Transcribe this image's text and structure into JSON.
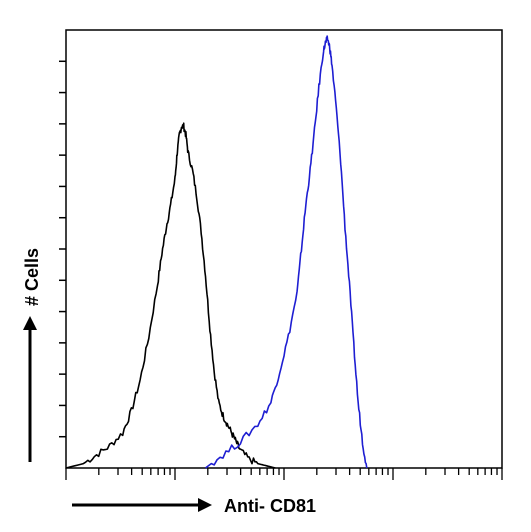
{
  "chart_data": {
    "type": "line",
    "title": "",
    "xlabel": "Anti- CD81",
    "ylabel": "# Cells",
    "x_scale": "log",
    "xlim": [
      0,
      100
    ],
    "ylim": [
      0,
      100
    ],
    "grid": false,
    "legend": "none",
    "series": [
      {
        "color": "#000000",
        "x": [
          0,
          4,
          7,
          10,
          13,
          15,
          17,
          19,
          21,
          22,
          23,
          24,
          25,
          25.5,
          26,
          26.5,
          27,
          27.5,
          28,
          29,
          30,
          31,
          32,
          33,
          34,
          35,
          36,
          37,
          38,
          39,
          40,
          42,
          44,
          46,
          48
        ],
        "y": [
          0,
          1,
          3,
          5,
          8,
          13,
          20,
          30,
          42,
          49,
          55,
          60,
          66,
          72,
          76,
          78,
          78,
          76,
          72,
          68,
          62,
          54,
          44,
          32,
          22,
          15,
          12,
          10,
          8,
          6,
          4,
          2,
          1,
          0.5,
          0
        ]
      },
      {
        "color": "#1e1ed2",
        "x": [
          32,
          36,
          40,
          44,
          47,
          49,
          51,
          53,
          54,
          55,
          56,
          57,
          58,
          59,
          59.5,
          60,
          60.5,
          61,
          62,
          63,
          64,
          65,
          66,
          67,
          68,
          69
        ],
        "y": [
          0,
          3,
          6,
          10,
          15,
          22,
          30,
          40,
          50,
          60,
          68,
          77,
          87,
          95,
          97,
          98,
          96,
          92,
          82,
          70,
          55,
          42,
          28,
          15,
          6,
          0
        ]
      }
    ]
  }
}
